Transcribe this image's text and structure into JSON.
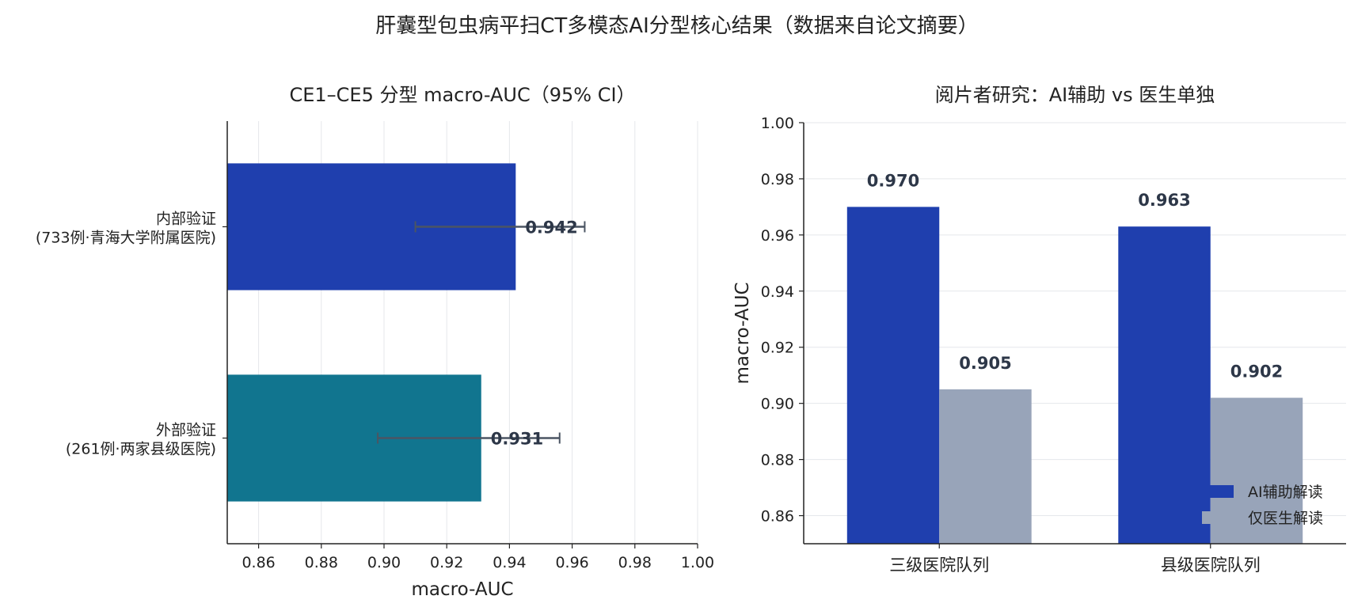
{
  "suptitle": "肝囊型包虫病平扫CT多模态AI分型核心结果（数据来自论文摘要）",
  "chart_data": [
    {
      "type": "bar",
      "orientation": "horizontal",
      "title": "CE1–CE5 分型 macro-AUC（95% CI）",
      "xlabel": "macro-AUC",
      "ylabel": "",
      "xlim": [
        0.85,
        1.0
      ],
      "xticks": [
        "0.86",
        "0.88",
        "0.90",
        "0.92",
        "0.94",
        "0.96",
        "0.98",
        "1.00"
      ],
      "grid": "vertical",
      "categories": [
        [
          "内部验证",
          "(733例·青海大学附属医院)"
        ],
        [
          "外部验证",
          "(261例·两家县级医院)"
        ]
      ],
      "values": [
        0.942,
        0.931
      ],
      "value_labels": [
        "0.942",
        "0.931"
      ],
      "ci": [
        [
          0.91,
          0.964
        ],
        [
          0.898,
          0.956
        ]
      ],
      "colors": [
        "#1f3fae",
        "#11758f"
      ],
      "errorbar_color": "#4b5563"
    },
    {
      "type": "bar",
      "orientation": "vertical",
      "title": "阅片者研究：AI辅助 vs 医生单独",
      "xlabel": "",
      "ylabel": "macro-AUC",
      "ylim": [
        0.85,
        1.0
      ],
      "yticks": [
        "0.86",
        "0.88",
        "0.90",
        "0.92",
        "0.94",
        "0.96",
        "0.98",
        "1.00"
      ],
      "grid": "horizontal",
      "legend_position": "bottom-right",
      "categories": [
        "三级医院队列",
        "县级医院队列"
      ],
      "series": [
        {
          "name": "AI辅助解读",
          "values": [
            0.97,
            0.963
          ],
          "labels": [
            "0.970",
            "0.963"
          ],
          "color": "#1f3fae"
        },
        {
          "name": "仅医生解读",
          "values": [
            0.905,
            0.902
          ],
          "labels": [
            "0.905",
            "0.902"
          ],
          "color": "#98a4b9"
        }
      ]
    }
  ]
}
